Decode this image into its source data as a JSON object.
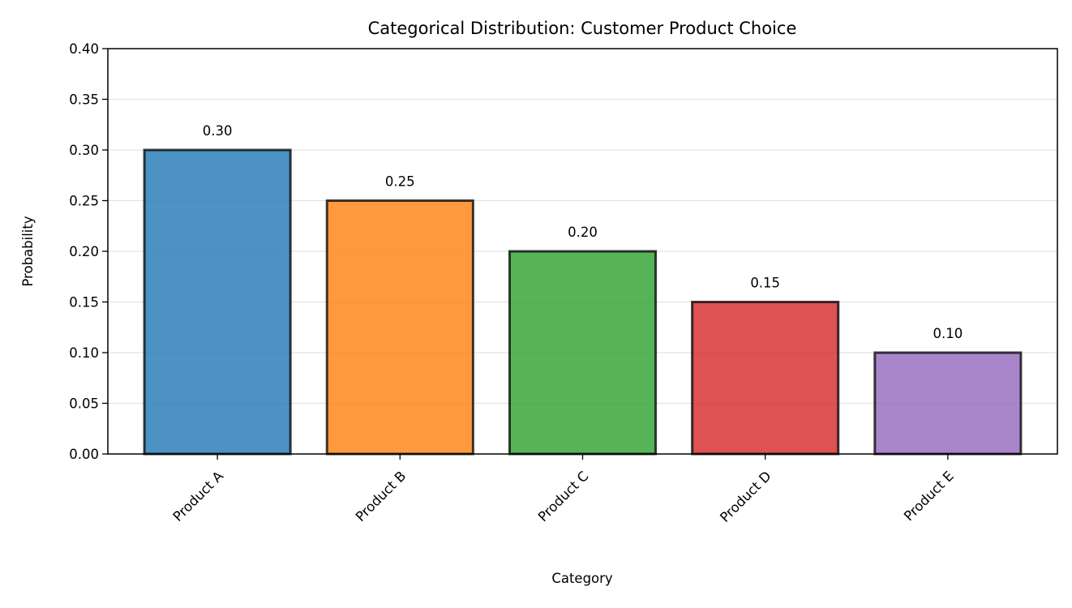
{
  "chart_data": {
    "type": "bar",
    "title": "Categorical Distribution: Customer Product Choice",
    "xlabel": "Category",
    "ylabel": "Probability",
    "categories": [
      "Product A",
      "Product B",
      "Product C",
      "Product D",
      "Product E"
    ],
    "values": [
      0.3,
      0.25,
      0.2,
      0.15,
      0.1
    ],
    "value_labels": [
      "0.30",
      "0.25",
      "0.20",
      "0.15",
      "0.10"
    ],
    "colors": [
      "#1f77b4",
      "#ff7f0e",
      "#2ca02c",
      "#d62728",
      "#9467bd"
    ],
    "bar_opacity": 0.8,
    "bar_edge_color": "#000000",
    "ylim": [
      0,
      0.4
    ],
    "yticks": [
      0.0,
      0.05,
      0.1,
      0.15,
      0.2,
      0.25,
      0.3,
      0.35,
      0.4
    ],
    "ytick_labels": [
      "0.00",
      "0.05",
      "0.10",
      "0.15",
      "0.20",
      "0.25",
      "0.30",
      "0.35",
      "0.40"
    ],
    "xtick_rotation_deg": 45,
    "grid": "y-axis only, light",
    "legend": "none"
  }
}
